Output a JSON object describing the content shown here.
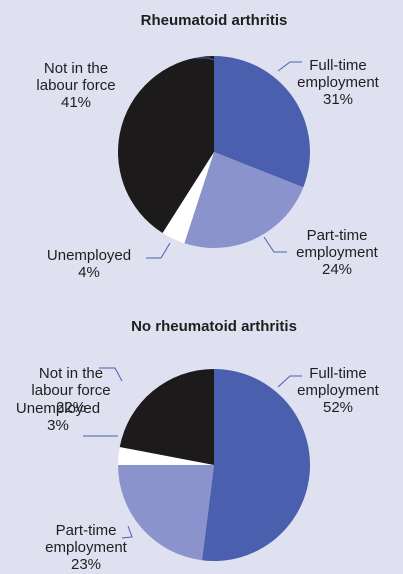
{
  "colors": {
    "background": "#dfe1f1",
    "full_time": "#4a5fae",
    "part_time": "#8b93cc",
    "unemployed": "#ffffff",
    "not_in_labour_force": "#1c1a1b",
    "leader": "#4a5fae",
    "text": "#1f1f1f"
  },
  "chart_data": [
    {
      "type": "pie",
      "title": "Rheumatoid arthritis",
      "slices": [
        {
          "label": "Full-time employment",
          "label_lines": [
            "Full-time",
            "employment"
          ],
          "value": 31,
          "value_label": "31%",
          "color": "#4a5fae"
        },
        {
          "label": "Part-time employment",
          "label_lines": [
            "Part-time",
            "employment"
          ],
          "value": 24,
          "value_label": "24%",
          "color": "#8b93cc"
        },
        {
          "label": "Unemployed",
          "label_lines": [
            "Unemployed"
          ],
          "value": 4,
          "value_label": "4%",
          "color": "#ffffff"
        },
        {
          "label": "Not in the labour force",
          "label_lines": [
            "Not in the",
            "labour force"
          ],
          "value": 41,
          "value_label": "41%",
          "color": "#1c1a1b"
        }
      ]
    },
    {
      "type": "pie",
      "title": "No rheumatoid arthritis",
      "slices": [
        {
          "label": "Full-time employment",
          "label_lines": [
            "Full-time",
            "employment"
          ],
          "value": 52,
          "value_label": "52%",
          "color": "#4a5fae"
        },
        {
          "label": "Part-time employment",
          "label_lines": [
            "Part-time",
            "employment"
          ],
          "value": 23,
          "value_label": "23%",
          "color": "#8b93cc"
        },
        {
          "label": "Unemployed",
          "label_lines": [
            "Unemployed"
          ],
          "value": 3,
          "value_label": "3%",
          "color": "#ffffff"
        },
        {
          "label": "Not in the labour force",
          "label_lines": [
            "Not in the",
            "labour force"
          ],
          "value": 22,
          "value_label": "22%",
          "color": "#1c1a1b"
        }
      ]
    }
  ]
}
